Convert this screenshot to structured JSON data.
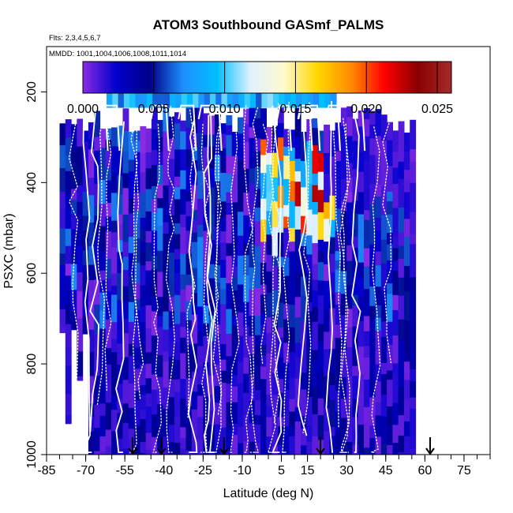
{
  "chart_data": {
    "type": "heatmap",
    "title": "ATOM3 Southbound GASmf_PALMS",
    "flights_note": "Flts: 2,3,4,5,6,7",
    "dates_note": "MMDD: 1001,1004,1006,1008,1011,1014",
    "xlabel": "Latitude (deg N)",
    "ylabel": "PSXC (mbar)",
    "xlim": [
      -85,
      85
    ],
    "ylim": [
      1000,
      100
    ],
    "x_tick_labels": [
      "-85",
      "-70",
      "-55",
      "-40",
      "-25",
      "-10",
      "5",
      "15",
      "30",
      "45",
      "60",
      "75"
    ],
    "y_tick_labels": [
      "200",
      "400",
      "600",
      "800",
      "1000"
    ],
    "colorbar": {
      "range": [
        0,
        0.026
      ],
      "tick_labels": [
        "0.000",
        "0.005",
        "0.010",
        "0.015",
        "0.020",
        "0.025"
      ],
      "colors": [
        "#8a2be2",
        "#0000cd",
        "#00008b",
        "#1e90ff",
        "#00bfff",
        "#e0f0ff",
        "#fffacd",
        "#ffd700",
        "#ff8c00",
        "#ff0000",
        "#8b0000",
        "#a52a2a"
      ]
    },
    "flight_markers_lat": [
      -52,
      -41,
      -17,
      20,
      62
    ],
    "altitude_range_mbar": [
      230,
      1000
    ],
    "lat_coverage": [
      -80,
      55
    ],
    "typical_value_range": [
      0.0,
      0.007
    ],
    "max_observed_region": {
      "lat": [
        -5,
        25
      ],
      "pressure_mbar": [
        300,
        500
      ],
      "value_range": [
        0.012,
        0.024
      ]
    }
  }
}
